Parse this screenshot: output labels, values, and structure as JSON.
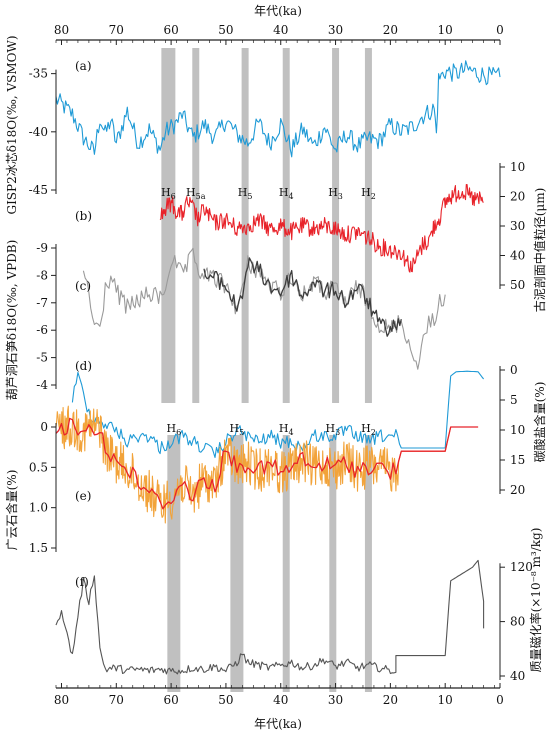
{
  "chart_data": {
    "type": "line",
    "x_axis": {
      "label": "年代(ka)",
      "range": [
        81,
        0
      ],
      "ticks": [
        "80",
        "70",
        "60",
        "50",
        "40",
        "30",
        "20",
        "10",
        "0"
      ]
    },
    "events_top": {
      "labels": [
        "H6",
        "H5a",
        "H5",
        "H4",
        "H3",
        "H2"
      ],
      "ages": [
        60.5,
        55.5,
        46.5,
        39.0,
        30.0,
        24.0
      ]
    },
    "events_bottom": {
      "labels": [
        "H6",
        "H5",
        "H4",
        "H3",
        "H2"
      ],
      "ages": [
        59.5,
        48.0,
        39.0,
        30.5,
        24.0
      ]
    },
    "panels": [
      {
        "id": "a",
        "label": "(a)",
        "side": "left",
        "axis_label": "GISP2冰芯δ18O(‰, VSMOW)",
        "ticks": [
          "-35",
          "-40",
          "-45"
        ],
        "color": "#1f9ad6",
        "keypoints": [
          [
            81,
            -37.2
          ],
          [
            78,
            -38.5
          ],
          [
            76,
            -40.5
          ],
          [
            74,
            -41.8
          ],
          [
            73,
            -38.8
          ],
          [
            72,
            -40.2
          ],
          [
            71,
            -39.0
          ],
          [
            70,
            -41.0
          ],
          [
            68,
            -38.2
          ],
          [
            66,
            -41.0
          ],
          [
            64,
            -39.8
          ],
          [
            62,
            -41.5
          ],
          [
            61,
            -40.0
          ],
          [
            59,
            -39.2
          ],
          [
            58,
            -38.5
          ],
          [
            56,
            -40.5
          ],
          [
            54,
            -39.4
          ],
          [
            52,
            -40.5
          ],
          [
            50,
            -39.0
          ],
          [
            48,
            -40.2
          ],
          [
            46,
            -41.0
          ],
          [
            44,
            -39.2
          ],
          [
            42,
            -41.0
          ],
          [
            40,
            -39.3
          ],
          [
            38,
            -41.5
          ],
          [
            36,
            -39.8
          ],
          [
            34,
            -41.2
          ],
          [
            32,
            -39.6
          ],
          [
            30,
            -41.6
          ],
          [
            28,
            -40.2
          ],
          [
            26,
            -41.2
          ],
          [
            24,
            -40.6
          ],
          [
            22,
            -40.8
          ],
          [
            20,
            -39.4
          ],
          [
            18,
            -40.0
          ],
          [
            16,
            -39.6
          ],
          [
            14,
            -38.6
          ],
          [
            12,
            -38.0
          ],
          [
            11.6,
            -40.2
          ],
          [
            11.2,
            -35.5
          ],
          [
            10,
            -34.8
          ],
          [
            8,
            -35.0
          ],
          [
            6,
            -34.6
          ],
          [
            4,
            -35.0
          ],
          [
            2,
            -35.2
          ],
          [
            0,
            -35.3
          ]
        ]
      },
      {
        "id": "b",
        "label": "(b)",
        "side": "right",
        "axis_label": "古泥剖面中值粒径(μm)",
        "ticks": [
          "10",
          "20",
          "30",
          "40",
          "50"
        ],
        "color": "#e8232a",
        "keypoints": [
          [
            62,
            27
          ],
          [
            61,
            24
          ],
          [
            60,
            22
          ],
          [
            59,
            25
          ],
          [
            58,
            26
          ],
          [
            57,
            22
          ],
          [
            56,
            24
          ],
          [
            55,
            28
          ],
          [
            54,
            24
          ],
          [
            53,
            27
          ],
          [
            52,
            29
          ],
          [
            50,
            28
          ],
          [
            48,
            31
          ],
          [
            46,
            30
          ],
          [
            44,
            28
          ],
          [
            42,
            31
          ],
          [
            40,
            30
          ],
          [
            38,
            32
          ],
          [
            36,
            30
          ],
          [
            34,
            31
          ],
          [
            32,
            30
          ],
          [
            30,
            31
          ],
          [
            28,
            33
          ],
          [
            26,
            32
          ],
          [
            24,
            34
          ],
          [
            22,
            37
          ],
          [
            20,
            38
          ],
          [
            18,
            39
          ],
          [
            17,
            42
          ],
          [
            16,
            44
          ],
          [
            15,
            40
          ],
          [
            14,
            36
          ],
          [
            13,
            35
          ],
          [
            12,
            30
          ],
          [
            11,
            27
          ],
          [
            10,
            22
          ],
          [
            9,
            20
          ],
          [
            8,
            19
          ],
          [
            7,
            18
          ],
          [
            6,
            19
          ],
          [
            5,
            21
          ],
          [
            4,
            21
          ],
          [
            3,
            22
          ]
        ]
      },
      {
        "id": "c",
        "label": "(c)",
        "side": "left",
        "axis_label": "葫芦洞石笋δ18O(‰, VPDB)",
        "ticks": [
          "-9",
          "-8",
          "-7",
          "-6",
          "-5",
          "-4"
        ],
        "colors": [
          "#9a9a9a",
          "#3c3c3c"
        ],
        "keypoints": [
          [
            76,
            -8.3
          ],
          [
            75,
            -7.2
          ],
          [
            74,
            -6.2
          ],
          [
            73,
            -6.0
          ],
          [
            72,
            -7.5
          ],
          [
            71,
            -8.0
          ],
          [
            70,
            -7.4
          ],
          [
            68,
            -6.8
          ],
          [
            66,
            -7.1
          ],
          [
            64,
            -7.3
          ],
          [
            62,
            -7.2
          ],
          [
            61,
            -7.6
          ],
          [
            60,
            -8.6
          ],
          [
            59,
            -8.3
          ],
          [
            58,
            -8.0
          ],
          [
            56,
            -8.7
          ],
          [
            55,
            -8.2
          ],
          [
            54,
            -8.0
          ],
          [
            52,
            -7.9
          ],
          [
            50,
            -7.6
          ],
          [
            48,
            -6.8
          ],
          [
            47,
            -7.4
          ],
          [
            46,
            -8.4
          ],
          [
            44,
            -8.2
          ],
          [
            42,
            -7.6
          ],
          [
            40,
            -7.4
          ],
          [
            38,
            -8.0
          ],
          [
            36,
            -7.2
          ],
          [
            34,
            -7.8
          ],
          [
            32,
            -7.4
          ],
          [
            30,
            -7.5
          ],
          [
            28,
            -7.0
          ],
          [
            26,
            -7.6
          ],
          [
            24,
            -7.0
          ],
          [
            22,
            -6.2
          ],
          [
            20,
            -6.0
          ],
          [
            18,
            -6.4
          ],
          [
            17,
            -5.8
          ],
          [
            16,
            -5.0
          ],
          [
            15,
            -4.9
          ],
          [
            14,
            -5.6
          ],
          [
            13,
            -6.2
          ],
          [
            12,
            -6.5
          ],
          [
            11,
            -7.0
          ],
          [
            10,
            -7.3
          ]
        ]
      },
      {
        "id": "d",
        "label": "(d)",
        "side": "right",
        "axis_label": "碳酸盐含量(%)",
        "ticks": [
          "0",
          "5",
          "10",
          "15",
          "20"
        ],
        "color": "#1f9ad6",
        "keypoints": [
          [
            78,
            5
          ],
          [
            77,
            1
          ],
          [
            76,
            4
          ],
          [
            75,
            7
          ],
          [
            74,
            8
          ],
          [
            72,
            9
          ],
          [
            70,
            10
          ],
          [
            68,
            12
          ],
          [
            66,
            11
          ],
          [
            64,
            11
          ],
          [
            62,
            13
          ],
          [
            60,
            12
          ],
          [
            58,
            11
          ],
          [
            56,
            12
          ],
          [
            54,
            13
          ],
          [
            52,
            14
          ],
          [
            50,
            12
          ],
          [
            48,
            10
          ],
          [
            46,
            11
          ],
          [
            44,
            12
          ],
          [
            42,
            11
          ],
          [
            40,
            12
          ],
          [
            38,
            12
          ],
          [
            36,
            13
          ],
          [
            34,
            11
          ],
          [
            32,
            11
          ],
          [
            30,
            11
          ],
          [
            28,
            10
          ],
          [
            26,
            11
          ],
          [
            24,
            12
          ],
          [
            22,
            11
          ],
          [
            20,
            11
          ],
          [
            19,
            11
          ],
          [
            18,
            13
          ],
          [
            10,
            13
          ],
          [
            9,
            1
          ],
          [
            8,
            0.3
          ],
          [
            6,
            0.2
          ],
          [
            4,
            0.3
          ],
          [
            3,
            1.5
          ]
        ]
      },
      {
        "id": "e",
        "label": "(e)",
        "side": "left",
        "axis_label": "广云石含量(%)",
        "ticks": [
          "0",
          "0.5",
          "1.0",
          "1.5"
        ],
        "colors": [
          "#e8232a",
          "#f2a33a"
        ],
        "keypoints": [
          [
            81,
            0.02
          ],
          [
            79,
            0.0
          ],
          [
            78,
            0.0
          ],
          [
            77,
            0.02
          ],
          [
            76,
            0.06
          ],
          [
            75,
            0.02
          ],
          [
            74,
            0.0
          ],
          [
            73,
            0.0
          ],
          [
            72,
            0.28
          ],
          [
            70,
            0.42
          ],
          [
            68,
            0.52
          ],
          [
            66,
            0.68
          ],
          [
            64,
            0.8
          ],
          [
            62,
            0.96
          ],
          [
            60,
            0.88
          ],
          [
            58,
            0.7
          ],
          [
            56,
            0.85
          ],
          [
            54,
            0.65
          ],
          [
            52,
            0.72
          ],
          [
            50,
            0.3
          ],
          [
            48,
            0.5
          ],
          [
            46,
            0.45
          ],
          [
            44,
            0.55
          ],
          [
            42,
            0.45
          ],
          [
            40,
            0.58
          ],
          [
            38,
            0.5
          ],
          [
            36,
            0.4
          ],
          [
            34,
            0.52
          ],
          [
            32,
            0.45
          ],
          [
            30,
            0.52
          ],
          [
            28,
            0.42
          ],
          [
            26,
            0.55
          ],
          [
            24,
            0.48
          ],
          [
            22,
            0.5
          ],
          [
            20,
            0.55
          ],
          [
            19,
            0.55
          ],
          [
            18,
            0.3
          ],
          [
            10,
            0.3
          ],
          [
            9,
            0.0
          ],
          [
            5,
            0.0
          ],
          [
            4,
            0.0
          ]
        ]
      },
      {
        "id": "f",
        "label": "(f)",
        "side": "right",
        "axis_label": "质量磁化率(×10⁻⁸ m³/kg)",
        "ticks": [
          "120",
          "80",
          "40"
        ],
        "color": "#555555",
        "keypoints": [
          [
            81,
            75
          ],
          [
            80,
            90
          ],
          [
            79,
            70
          ],
          [
            78,
            55
          ],
          [
            77,
            85
          ],
          [
            76,
            110
          ],
          [
            75,
            95
          ],
          [
            74,
            115
          ],
          [
            73,
            60
          ],
          [
            72,
            45
          ],
          [
            70,
            46
          ],
          [
            68,
            44
          ],
          [
            66,
            45
          ],
          [
            64,
            44
          ],
          [
            62,
            45
          ],
          [
            60,
            44
          ],
          [
            58,
            44
          ],
          [
            56,
            46
          ],
          [
            54,
            45
          ],
          [
            52,
            47
          ],
          [
            50,
            44
          ],
          [
            48,
            50
          ],
          [
            47,
            56
          ],
          [
            46,
            50
          ],
          [
            44,
            48
          ],
          [
            42,
            46
          ],
          [
            40,
            48
          ],
          [
            38,
            50
          ],
          [
            36,
            46
          ],
          [
            34,
            48
          ],
          [
            32,
            52
          ],
          [
            30,
            47
          ],
          [
            28,
            50
          ],
          [
            26,
            46
          ],
          [
            24,
            48
          ],
          [
            22,
            46
          ],
          [
            20,
            44
          ],
          [
            19,
            44
          ],
          [
            19,
            55
          ],
          [
            10,
            55
          ],
          [
            9,
            110
          ],
          [
            7,
            115
          ],
          [
            5,
            120
          ],
          [
            4,
            125
          ],
          [
            3,
            95
          ],
          [
            3,
            75
          ]
        ]
      }
    ]
  }
}
